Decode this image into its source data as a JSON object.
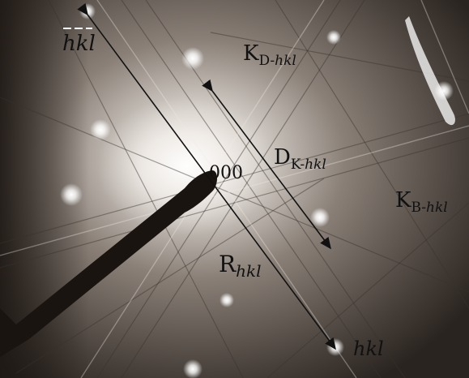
{
  "image": {
    "kind": "electron diffraction pattern with Kikuchi lines",
    "colors": {
      "background_dark": "#2a2420",
      "background_mid": "#8a8078",
      "spot": "#ffffff",
      "beam_stop": "#1a1410",
      "arrow": "#111111",
      "overline": "#ffffff"
    }
  },
  "labels": {
    "neg_hkl": "hkl",
    "k_d_main": "K",
    "k_d_sub": "D-",
    "k_d_sub_it": "hkl",
    "center": "000",
    "d_k_main": "D",
    "d_k_sub": "K-",
    "d_k_sub_it": "hkl",
    "k_b_main": "K",
    "k_b_sub": "B-",
    "k_b_sub_it": "hkl",
    "r_main": "R",
    "r_sub_it": "hkl",
    "pos_hkl": "hkl"
  }
}
